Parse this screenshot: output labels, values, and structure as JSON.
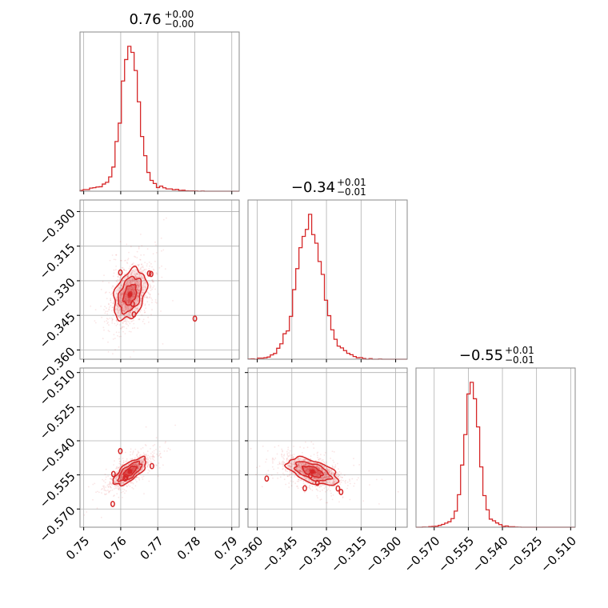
{
  "chart_data": {
    "type": "corner",
    "color": "#d62728",
    "parameters": [
      {
        "title": {
          "value": "0.76",
          "plus": "+0.00",
          "minus": "−0.00"
        },
        "range": [
          0.749,
          0.792
        ],
        "ticks": [
          0.75,
          0.76,
          0.77,
          0.78,
          0.79
        ],
        "tick_labels": [
          "0.75",
          "0.76",
          "0.77",
          "0.78",
          "0.79"
        ],
        "gaussian": {
          "mean": 0.7625,
          "sigma": 0.0022,
          "tail_sigma": 0.006,
          "peak_offset": 0.0
        }
      },
      {
        "title": {
          "value": "−0.34",
          "plus": "+0.01",
          "minus": "−0.01"
        },
        "range": [
          -0.364,
          -0.295
        ],
        "ticks": [
          -0.36,
          -0.345,
          -0.33,
          -0.315,
          -0.3
        ],
        "tick_labels": [
          "−0.360",
          "−0.345",
          "−0.330",
          "−0.315",
          "−0.300"
        ],
        "gaussian": {
          "mean": -0.336,
          "sigma": 0.0055,
          "tail_sigma": 0.009,
          "peak_offset": -0.0015
        }
      },
      {
        "title": {
          "value": "−0.55",
          "plus": "+0.01",
          "minus": "−0.01"
        },
        "range": [
          -0.578,
          -0.508
        ],
        "ticks": [
          -0.57,
          -0.555,
          -0.54,
          -0.525,
          -0.51
        ],
        "tick_labels": [
          "−0.570",
          "−0.555",
          "−0.540",
          "−0.525",
          "−0.510"
        ],
        "gaussian": {
          "mean": -0.5535,
          "sigma": 0.003,
          "tail_sigma": 0.007,
          "peak_offset": 0.0
        }
      }
    ],
    "correlations": {
      "1_0": 0.35,
      "2_0": 0.7,
      "2_1": -0.55
    },
    "grid": true,
    "contours": true
  }
}
